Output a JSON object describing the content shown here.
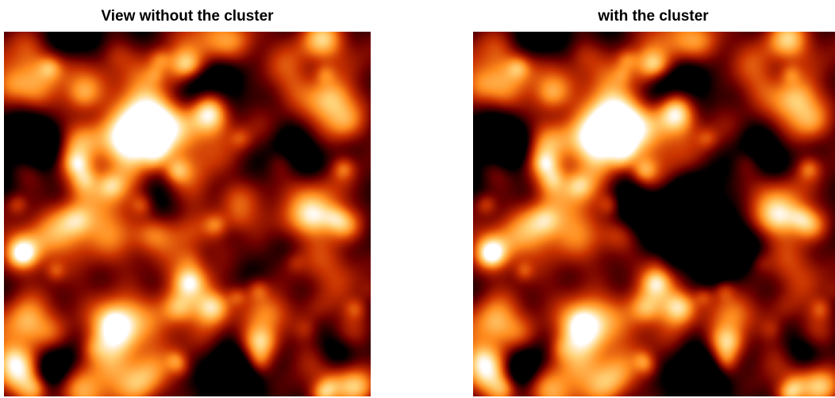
{
  "panels": [
    {
      "title": "View without the cluster"
    },
    {
      "title": "with the cluster"
    }
  ],
  "colormap": {
    "name": "afmhot",
    "stops": [
      "#000000",
      "#6e0000",
      "#c83200",
      "#ff8c1e",
      "#ffd278",
      "#ffffff"
    ]
  }
}
